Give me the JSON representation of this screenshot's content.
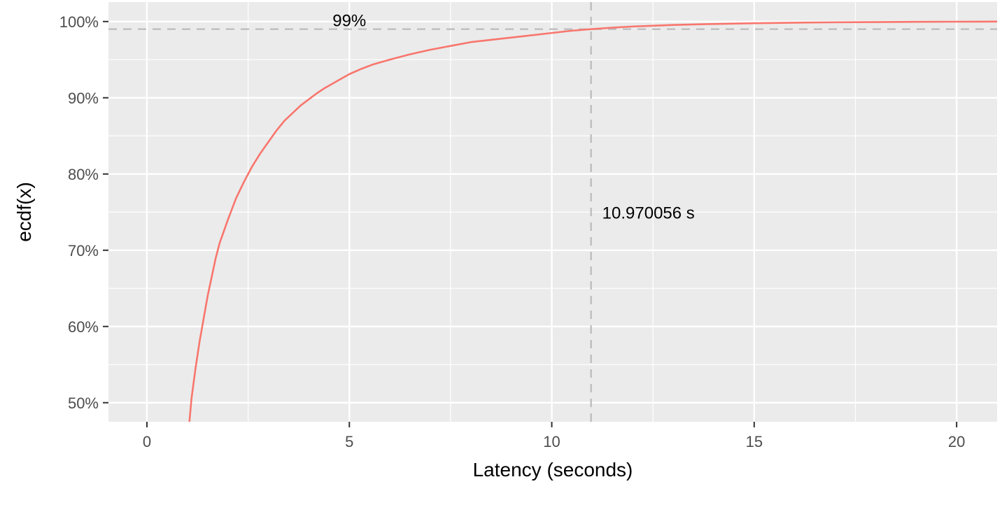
{
  "chart_data": {
    "type": "line",
    "title": "",
    "xlabel": "Latency (seconds)",
    "ylabel": "ecdf(x)",
    "xlim": [
      -0.95,
      21.0
    ],
    "ylim": [
      0.475,
      1.0255
    ],
    "x_ticks": [
      0,
      5,
      10,
      15,
      20
    ],
    "x_tick_labels": [
      "0",
      "5",
      "10",
      "15",
      "20"
    ],
    "y_ticks": [
      0.5,
      0.6,
      0.7,
      0.8,
      0.9,
      1.0
    ],
    "y_tick_labels": [
      "50%",
      "60%",
      "70%",
      "80%",
      "90%",
      "100%"
    ],
    "grid": true,
    "legend": "none",
    "colors": {
      "panel": "#ebebeb",
      "grid": "#ffffff",
      "series": "#f8766d",
      "reference": "#bebebe"
    },
    "series": [
      {
        "x": [
          1.05,
          1.1,
          1.2,
          1.3,
          1.4,
          1.5,
          1.6,
          1.7,
          1.8,
          1.9,
          2.0,
          2.2,
          2.4,
          2.6,
          2.8,
          3.0,
          3.2,
          3.4,
          3.6,
          3.8,
          4.0,
          4.2,
          4.4,
          4.6,
          4.8,
          5.0,
          5.3,
          5.6,
          6.0,
          6.5,
          7.0,
          7.5,
          8.0,
          8.5,
          9.0,
          9.5,
          10.0,
          10.5,
          10.97,
          11.5,
          12.0,
          12.5,
          13.0,
          13.5,
          14.0,
          15.0,
          16.0,
          17.0,
          18.0,
          19.0,
          20.0,
          21.0
        ],
        "y": [
          0.475,
          0.505,
          0.545,
          0.58,
          0.61,
          0.64,
          0.665,
          0.69,
          0.71,
          0.725,
          0.74,
          0.768,
          0.79,
          0.81,
          0.827,
          0.842,
          0.857,
          0.87,
          0.88,
          0.89,
          0.898,
          0.906,
          0.913,
          0.919,
          0.925,
          0.931,
          0.938,
          0.944,
          0.95,
          0.957,
          0.963,
          0.968,
          0.973,
          0.976,
          0.979,
          0.982,
          0.985,
          0.988,
          0.99,
          0.992,
          0.9935,
          0.9945,
          0.9955,
          0.9962,
          0.9968,
          0.9978,
          0.9985,
          0.999,
          0.9993,
          0.9996,
          0.9998,
          1.0
        ]
      }
    ],
    "reference_lines": {
      "percentile": 0.99,
      "value": 10.970056
    },
    "annotations": {
      "percentile_label": "99%",
      "percentile_label_x": 5.0,
      "value_label": "10.970056 s",
      "value_label_y": 0.75
    }
  }
}
